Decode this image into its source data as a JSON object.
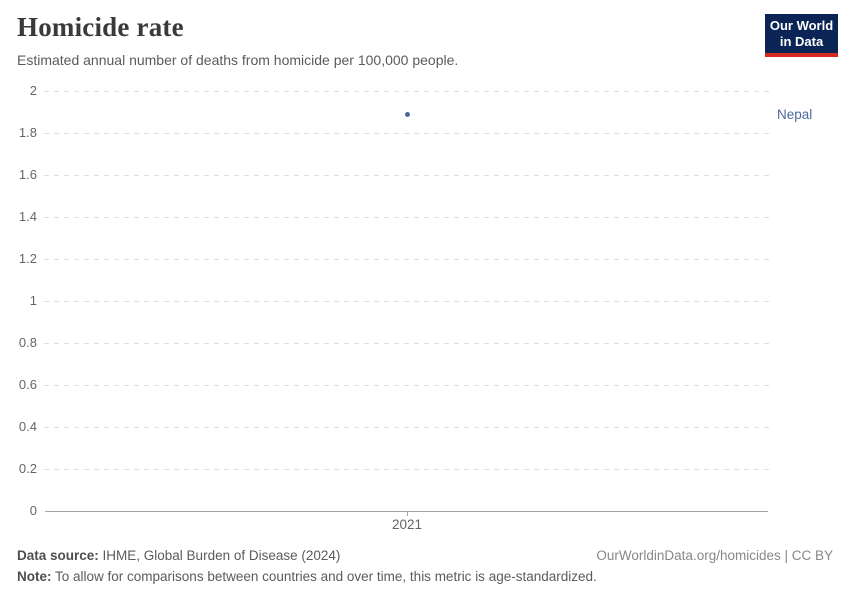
{
  "header": {
    "title": "Homicide rate",
    "subtitle": "Estimated annual number of deaths from homicide per 100,000 people.",
    "logo": {
      "line1": "Our World",
      "line2": "in Data",
      "bg_color": "#0A2455",
      "bar_color": "#D42B21"
    }
  },
  "chart_data": {
    "type": "scatter",
    "title": "Homicide rate",
    "subtitle": "Estimated annual number of deaths from homicide per 100,000 people.",
    "series": [
      {
        "name": "Nepal",
        "color": "#4C6A9C",
        "points": [
          {
            "x": 2021,
            "y": 1.89
          }
        ]
      }
    ],
    "xticks": [
      "2021"
    ],
    "yticks": [
      0,
      0.2,
      0.4,
      0.6,
      0.8,
      1,
      1.2,
      1.4,
      1.6,
      1.8,
      2
    ],
    "ylim": [
      0,
      2
    ],
    "xlabel": "",
    "ylabel": "",
    "grid": "horizontal-dashed",
    "legend_position": "entity-label-right",
    "axis_color": "#a5a5a5",
    "grid_color": "#dedede",
    "tick_label_color": "#666666"
  },
  "footer": {
    "datasource_label": "Data source:",
    "datasource_text": " IHME, Global Burden of Disease (2024)",
    "note_label": "Note:",
    "note_text": " To allow for comparisons between countries and over time, this metric is age-standardized.",
    "credit": "OurWorldinData.org/homicides | CC BY"
  }
}
